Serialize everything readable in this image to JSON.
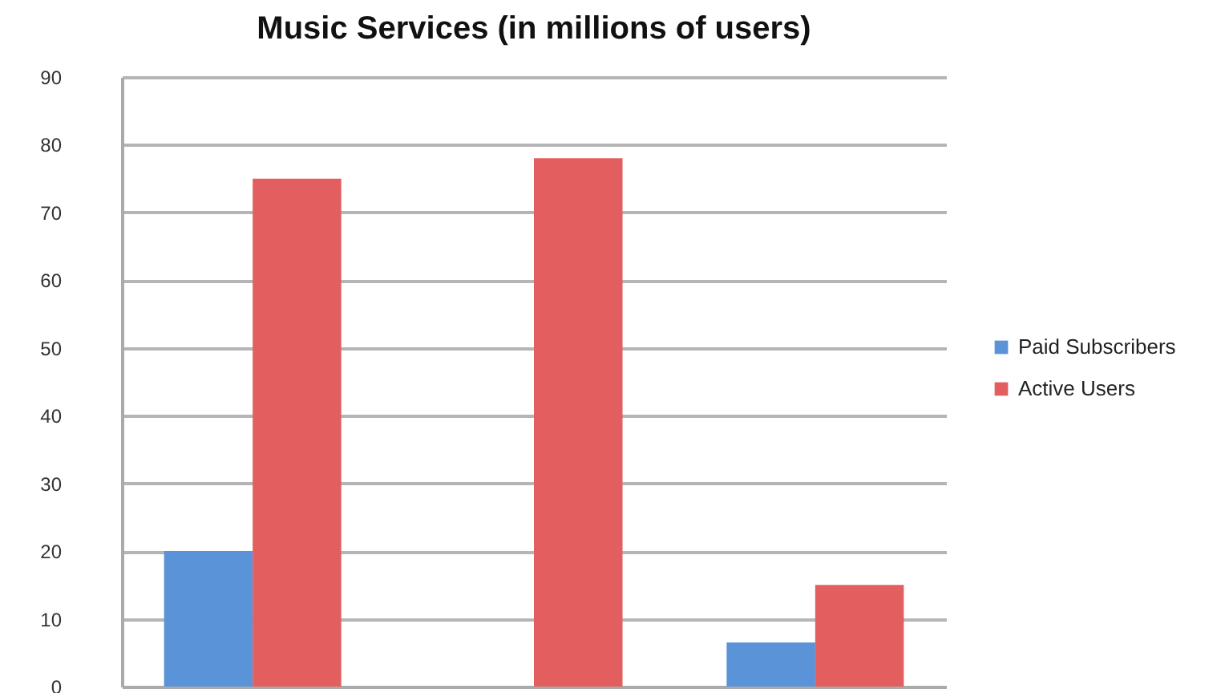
{
  "chart_data": {
    "type": "bar",
    "title": "Music Services (in millions of users)",
    "categories": [
      null,
      null,
      null
    ],
    "series": [
      {
        "name": "Paid Subscribers",
        "color": "#5b93d9",
        "values": [
          20,
          null,
          6.5
        ]
      },
      {
        "name": "Active Users",
        "color": "#e35f5f",
        "values": [
          75,
          78,
          15
        ]
      }
    ],
    "ylim": [
      0,
      90
    ],
    "yticks": [
      0,
      10,
      20,
      30,
      40,
      50,
      60,
      70,
      80,
      90
    ],
    "grid": "y",
    "legend": "right",
    "tick_labels": "y"
  }
}
